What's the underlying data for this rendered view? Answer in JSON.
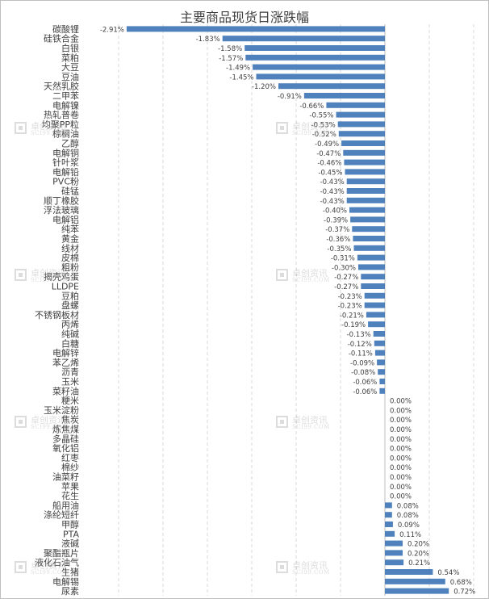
{
  "chart_data": {
    "type": "bar",
    "orientation": "horizontal",
    "title": "主要商品现货日涨跌幅",
    "categories": [
      "碳酸锂",
      "硅铁合金",
      "白银",
      "菜粕",
      "大豆",
      "豆油",
      "天然乳胶",
      "二甲苯",
      "电解镍",
      "热轧普卷",
      "均聚PP粒",
      "棕榈油",
      "乙醇",
      "电解铜",
      "针叶浆",
      "电解铅",
      "PVC粉",
      "硅锰",
      "顺丁橡胶",
      "浮法玻璃",
      "电解铝",
      "纯苯",
      "黄金",
      "线材",
      "皮棉",
      "粗粉",
      "揭壳鸡蛋",
      "LLDPE",
      "豆粕",
      "盘螺",
      "不锈钢板材",
      "丙烯",
      "纯碱",
      "白糖",
      "电解锌",
      "苯乙烯",
      "沥青",
      "玉米",
      "菜籽油",
      "粳米",
      "玉米淀粉",
      "焦炭",
      "炼焦煤",
      "多晶硅",
      "氧化铝",
      "红枣",
      "棉纱",
      "油菜籽",
      "苹果",
      "花生",
      "船用油",
      "涤纶短纤",
      "甲醇",
      "PTA",
      "液碱",
      "聚酯瓶片",
      "液化石油气",
      "生猪",
      "电解锡",
      "尿素"
    ],
    "values": [
      -2.91,
      -1.83,
      -1.58,
      -1.57,
      -1.49,
      -1.45,
      -1.2,
      -0.91,
      -0.66,
      -0.55,
      -0.53,
      -0.52,
      -0.49,
      -0.47,
      -0.46,
      -0.45,
      -0.43,
      -0.43,
      -0.43,
      -0.4,
      -0.39,
      -0.37,
      -0.36,
      -0.35,
      -0.31,
      -0.3,
      -0.27,
      -0.27,
      -0.23,
      -0.23,
      -0.21,
      -0.19,
      -0.13,
      -0.12,
      -0.11,
      -0.09,
      -0.08,
      -0.06,
      -0.06,
      0.0,
      0.0,
      0.0,
      0.0,
      0.0,
      0.0,
      0.0,
      0.0,
      0.0,
      0.0,
      0.0,
      0.08,
      0.08,
      0.09,
      0.11,
      0.2,
      0.2,
      0.21,
      0.54,
      0.68,
      0.72
    ],
    "value_labels": [
      "-2.91%",
      "-1.83%",
      "-1.58%",
      "-1.57%",
      "-1.49%",
      "-1.45%",
      "-1.20%",
      "-0.91%",
      "-0.66%",
      "-0.55%",
      "-0.53%",
      "-0.52%",
      "-0.49%",
      "-0.47%",
      "-0.46%",
      "-0.45%",
      "-0.43%",
      "-0.43%",
      "-0.43%",
      "-0.40%",
      "-0.39%",
      "-0.37%",
      "-0.36%",
      "-0.35%",
      "-0.31%",
      "-0.30%",
      "-0.27%",
      "-0.27%",
      "-0.23%",
      "-0.23%",
      "-0.21%",
      "-0.19%",
      "-0.13%",
      "-0.12%",
      "-0.11%",
      "-0.09%",
      "-0.08%",
      "-0.06%",
      "-0.06%",
      "0.00%",
      "0.00%",
      "0.00%",
      "0.00%",
      "0.00%",
      "0.00%",
      "0.00%",
      "0.00%",
      "0.00%",
      "0.00%",
      "0.00%",
      "0.08%",
      "0.08%",
      "0.09%",
      "0.11%",
      "0.20%",
      "0.20%",
      "0.21%",
      "0.54%",
      "0.68%",
      "0.72%"
    ],
    "unit": "%",
    "xlim": [
      -3.0,
      1.0
    ],
    "grid": true,
    "bar_color": "#4f81bd",
    "legend": "none"
  },
  "watermark": {
    "text_cn": "卓创资讯",
    "text_en": "SCI99.COM"
  }
}
